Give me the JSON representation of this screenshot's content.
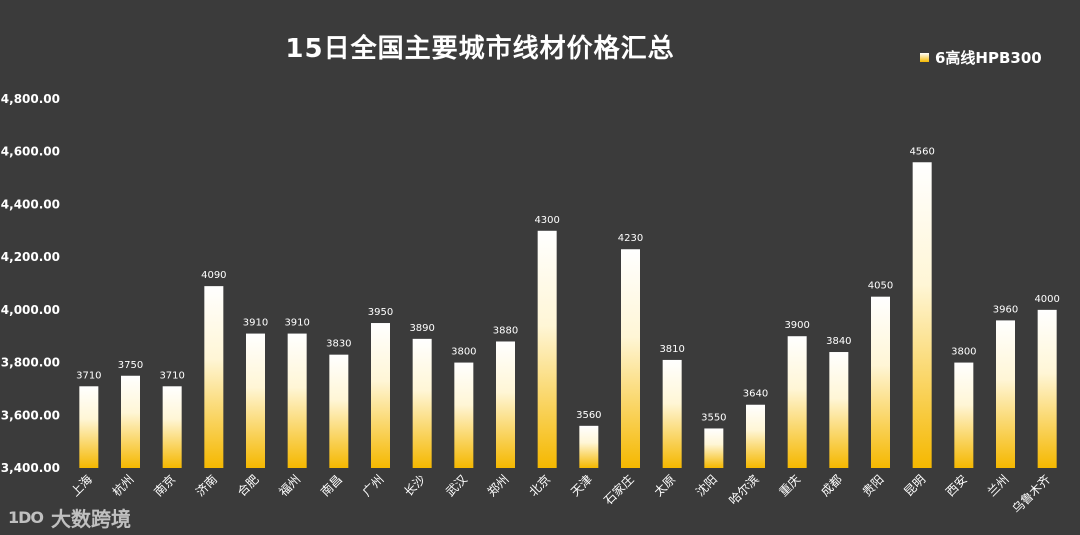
{
  "chart_data": {
    "type": "bar",
    "title": "15日全国主要城市线材价格汇总",
    "xlabel": "",
    "ylabel": "",
    "ylim": [
      3400,
      4800
    ],
    "yticks": [
      "3,400.00",
      "3,600.00",
      "3,800.00",
      "4,000.00",
      "4,200.00",
      "4,400.00",
      "4,600.00",
      "4,800.00"
    ],
    "yticks_values": [
      3400,
      3600,
      3800,
      4000,
      4200,
      4400,
      4600,
      4800
    ],
    "grid": false,
    "legend_position": "top-right",
    "categories": [
      "上海",
      "杭州",
      "南京",
      "济南",
      "合肥",
      "福州",
      "南昌",
      "广州",
      "长沙",
      "武汉",
      "郑州",
      "北京",
      "天津",
      "石家庄",
      "太原",
      "沈阳",
      "哈尔滨",
      "重庆",
      "成都",
      "贵阳",
      "昆明",
      "西安",
      "兰州",
      "乌鲁木齐"
    ],
    "series": [
      {
        "name": "6高线HPB300",
        "values": [
          3710,
          3750,
          3710,
          4090,
          3910,
          3910,
          3830,
          3950,
          3890,
          3800,
          3880,
          4300,
          3560,
          4230,
          3810,
          3550,
          3640,
          3900,
          3840,
          4050,
          4560,
          3800,
          3960,
          4000
        ]
      }
    ],
    "colors": {
      "bar_top": "#ffffff",
      "bar_bottom": "#f5b800",
      "background": "#3b3b3b",
      "text": "#ffffff"
    }
  },
  "watermark": {
    "logo_text": "1DO",
    "text": "大数跨境"
  }
}
